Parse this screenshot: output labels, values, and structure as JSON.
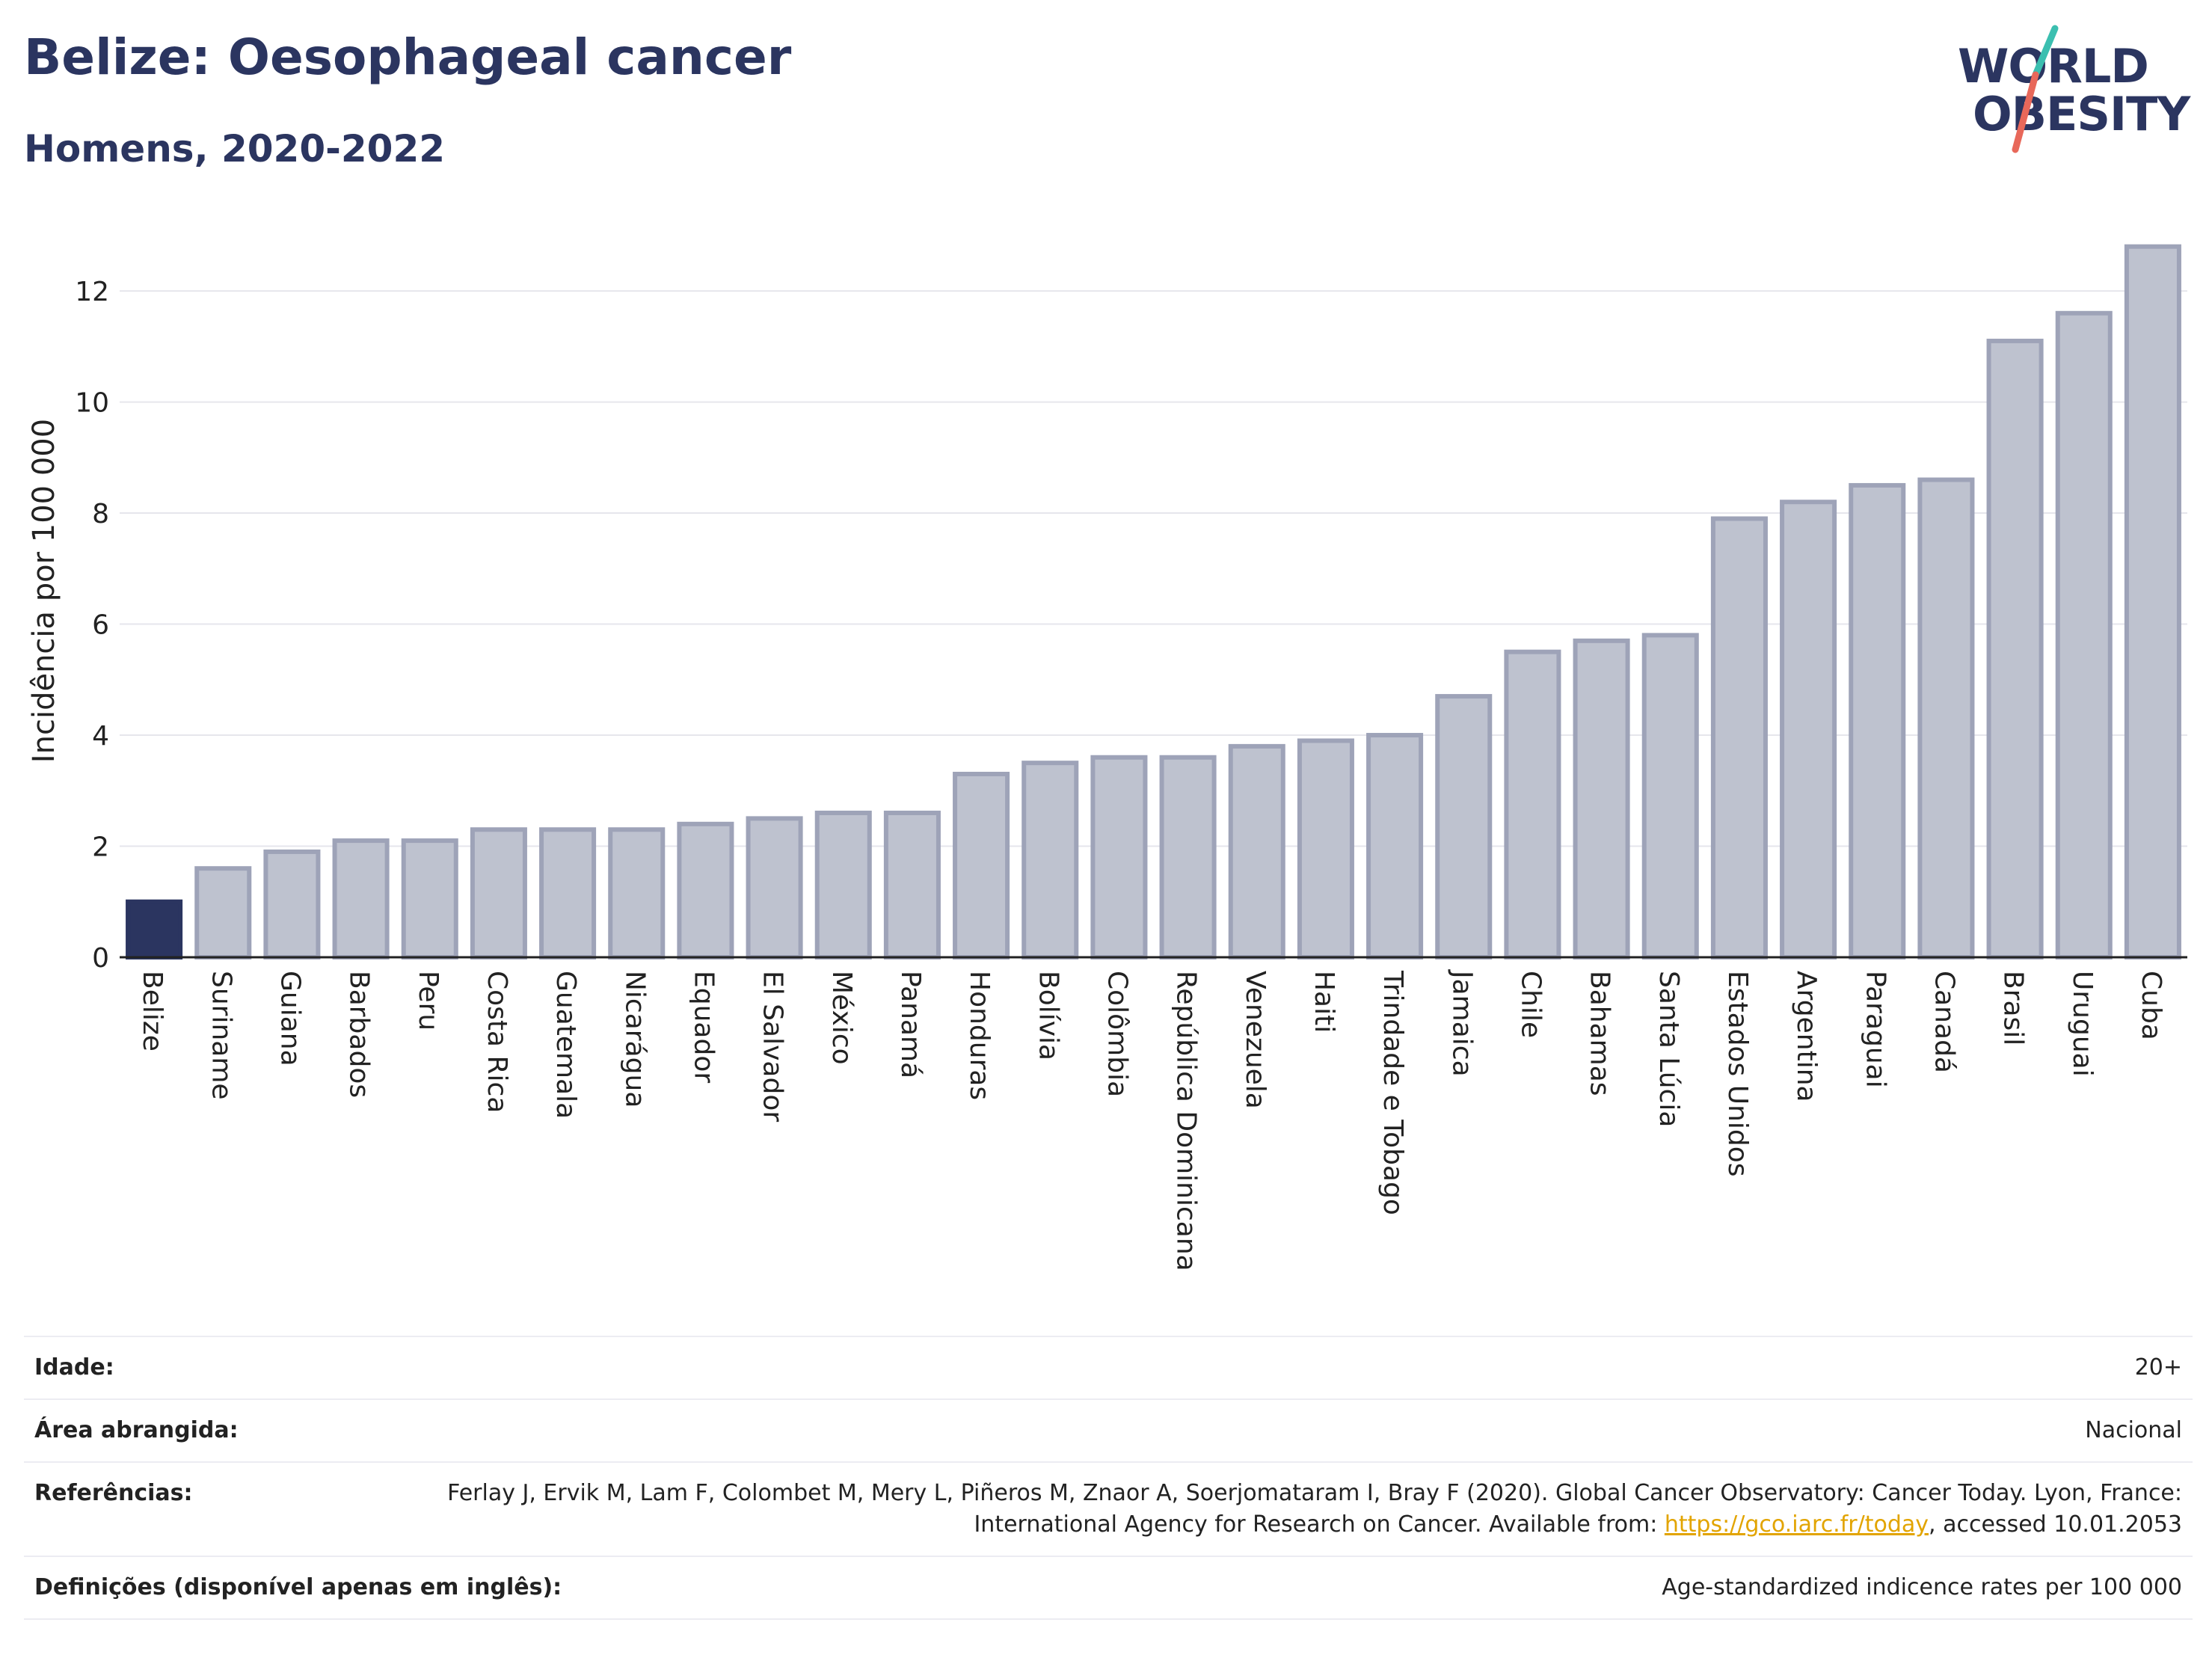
{
  "title": "Belize: Oesophageal cancer",
  "subtitle": "Homens, 2020-2022",
  "logo": {
    "line1": "WORLD",
    "line2": "OBESITY"
  },
  "colors": {
    "highlight": "#2b3560",
    "bar_fill": "#bec2cf",
    "bar_stroke": "#9ea3b8",
    "accent_teal": "#3bbfb0",
    "accent_red": "#e8685a",
    "link": "#e2a400"
  },
  "chart_data": {
    "type": "bar",
    "ylabel": "Incidência por 100 000",
    "xlabel": "",
    "ylim": [
      0,
      13.2
    ],
    "yticks": [
      0,
      2,
      4,
      6,
      8,
      10,
      12
    ],
    "grid": true,
    "highlight": "Belize",
    "categories": [
      "Belize",
      "Suriname",
      "Guiana",
      "Barbados",
      "Peru",
      "Costa Rica",
      "Guatemala",
      "Nicarágua",
      "Equador",
      "El Salvador",
      "México",
      "Panamá",
      "Honduras",
      "Bolívia",
      "Colômbia",
      "República Dominicana",
      "Venezuela",
      "Haiti",
      "Trindade e Tobago",
      "Jamaica",
      "Chile",
      "Bahamas",
      "Santa Lúcia",
      "Estados Unidos",
      "Argentina",
      "Paraguai",
      "Canadá",
      "Brasil",
      "Uruguai",
      "Cuba"
    ],
    "values": [
      1.0,
      1.6,
      1.9,
      2.1,
      2.1,
      2.3,
      2.3,
      2.3,
      2.4,
      2.5,
      2.6,
      2.6,
      3.3,
      3.5,
      3.6,
      3.6,
      3.8,
      3.9,
      4.0,
      4.7,
      5.5,
      5.7,
      5.8,
      7.9,
      8.2,
      8.5,
      8.6,
      11.1,
      11.6,
      12.8
    ]
  },
  "footer": {
    "age_label": "Idade:",
    "age_value": "20+",
    "area_label": "Área abrangida:",
    "area_value": "Nacional",
    "ref_label": "Referências:",
    "ref_text_1": "Ferlay J, Ervik M, Lam F, Colombet M, Mery L, Piñeros M, Znaor A, Soerjomataram I, Bray F (2020). Global Cancer Observatory: Cancer Today. Lyon, France: International Agency for Research on Cancer. Available from: ",
    "ref_link": "https://gco.iarc.fr/today",
    "ref_text_2": ", accessed 10.01.2053",
    "def_label": "Definições (disponível apenas em inglês):",
    "def_value": "Age-standardized indicence rates per 100 000"
  }
}
